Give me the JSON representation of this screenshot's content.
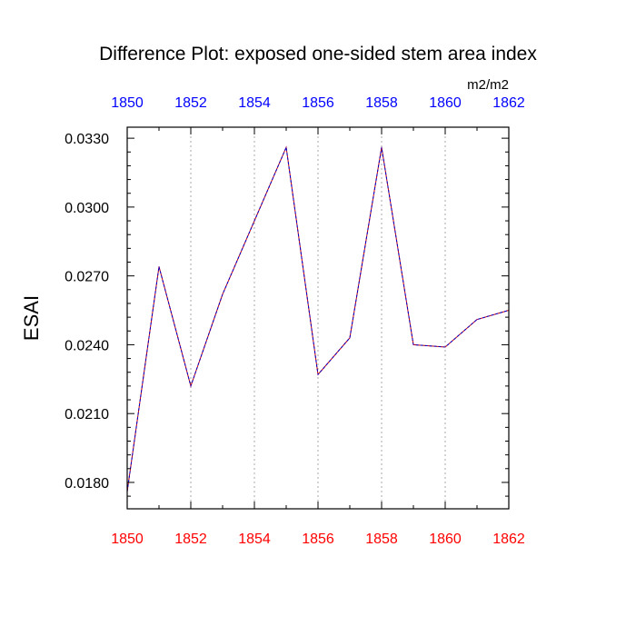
{
  "chart_data": {
    "type": "line",
    "title": "Difference Plot: exposed one-sided stem area index",
    "units": "m2/m2",
    "ylabel": "ESAI",
    "xlabel": "",
    "x": [
      1850,
      1851,
      1852,
      1853,
      1854,
      1855,
      1856,
      1857,
      1858,
      1859,
      1860,
      1861,
      1862
    ],
    "series": [
      {
        "values": [
          0.0176,
          0.0274,
          0.0222,
          0.0262,
          0.0294,
          0.0326,
          0.0227,
          0.0243,
          0.0326,
          0.024,
          0.0239,
          0.0251,
          0.0255
        ]
      }
    ],
    "xlim": [
      1850,
      1862
    ],
    "ylim": [
      0.01685,
      0.03348
    ],
    "x_ticks": [
      "1850",
      "1852",
      "1854",
      "1856",
      "1858",
      "1860",
      "1862"
    ],
    "y_ticks": [
      "0.0180",
      "0.0210",
      "0.0240",
      "0.0270",
      "0.0300",
      "0.0330"
    ],
    "top_axis_ticks": [
      "1850",
      "1852",
      "1854",
      "1856",
      "1858",
      "1860",
      "1862"
    ],
    "grid": "vertical dotted at major x ticks",
    "line_style": "dashed",
    "colors": {
      "line_primary": "#0000cc",
      "line_secondary": "#cc0000",
      "bottom_tick_labels": "#ff0000",
      "top_tick_labels": "#0000ff",
      "grid": "#aaaaaa",
      "axis": "#000000"
    }
  }
}
